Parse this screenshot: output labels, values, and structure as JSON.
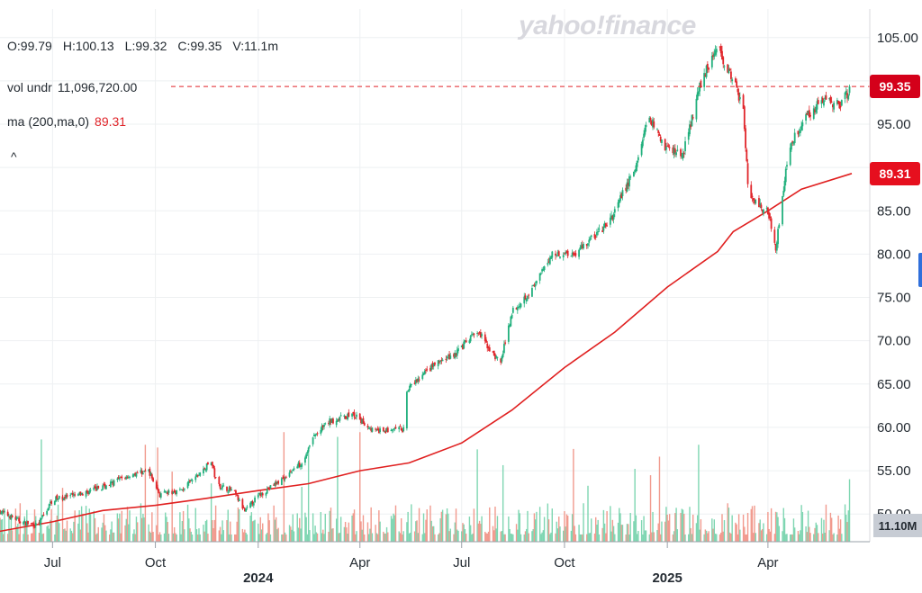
{
  "brand": "yahoo!finance",
  "ohlc": {
    "open": "O:99.79",
    "high": "H:100.13",
    "low": "L:99.32",
    "close": "C:99.35",
    "volume": "V:11.1m"
  },
  "indicators": {
    "vol_label": "vol undr",
    "vol_value": "11,096,720.00",
    "ma_label": "ma (200,ma,0)",
    "ma_value": "89.31"
  },
  "collapse_glyph": "^",
  "badges": {
    "last_price": "99.35",
    "ma_price": "89.31",
    "volume": "11.10M"
  },
  "colors": {
    "up": "#22b07d",
    "down": "#e0252a",
    "ma": "#e02020",
    "vol_up": "#7fd6b2",
    "vol_down": "#f19a8e",
    "price_badge": "#d4001a",
    "ma_badge": "#e60f1e"
  },
  "chart_data": {
    "type": "candlestick",
    "y_ticks": [
      "105.00",
      "100.00",
      "95.00",
      "90.00",
      "85.00",
      "80.00",
      "75.00",
      "70.00",
      "65.00",
      "60.00",
      "55.00",
      "50.00"
    ],
    "x_ticks": [
      {
        "label": "Jul",
        "date": "2023-07-01"
      },
      {
        "label": "Oct",
        "date": "2023-10-01"
      },
      {
        "label": "2024",
        "date": "2024-01-01"
      },
      {
        "label": "Apr",
        "date": "2024-04-01"
      },
      {
        "label": "Jul",
        "date": "2024-07-01"
      },
      {
        "label": "Oct",
        "date": "2024-10-01"
      },
      {
        "label": "2025",
        "date": "2025-01-01"
      },
      {
        "label": "Apr",
        "date": "2025-04-01"
      }
    ],
    "ylim": [
      46.8,
      108.3
    ],
    "last_price": 99.35,
    "price_path": [
      [
        "2023-05-15",
        50.3
      ],
      [
        "2023-06-05",
        49.0
      ],
      [
        "2023-06-18",
        48.7
      ],
      [
        "2023-07-01",
        51.7
      ],
      [
        "2023-07-25",
        52.2
      ],
      [
        "2023-08-20",
        53.4
      ],
      [
        "2023-09-10",
        54.6
      ],
      [
        "2023-09-25",
        55.0
      ],
      [
        "2023-10-05",
        52.2
      ],
      [
        "2023-10-25",
        52.8
      ],
      [
        "2023-11-10",
        54.7
      ],
      [
        "2023-11-20",
        56.1
      ],
      [
        "2023-11-25",
        53.4
      ],
      [
        "2023-12-10",
        52.6
      ],
      [
        "2023-12-20",
        50.3
      ],
      [
        "2024-01-01",
        52.1
      ],
      [
        "2024-01-20",
        53.8
      ],
      [
        "2024-02-10",
        56.1
      ],
      [
        "2024-02-20",
        59.0
      ],
      [
        "2024-03-05",
        60.7
      ],
      [
        "2024-03-25",
        61.5
      ],
      [
        "2024-04-15",
        59.5
      ],
      [
        "2024-05-10",
        59.8
      ],
      [
        "2024-05-12",
        64.1
      ],
      [
        "2024-06-05",
        67.1
      ],
      [
        "2024-06-25",
        68.5
      ],
      [
        "2024-07-15",
        71.1
      ],
      [
        "2024-07-30",
        68.3
      ],
      [
        "2024-08-05",
        67.5
      ],
      [
        "2024-08-15",
        73.4
      ],
      [
        "2024-09-05",
        76.4
      ],
      [
        "2024-09-20",
        80.1
      ],
      [
        "2024-10-10",
        80.1
      ],
      [
        "2024-11-10",
        83.6
      ],
      [
        "2024-12-05",
        90.5
      ],
      [
        "2024-12-15",
        96.1
      ],
      [
        "2024-12-30",
        92.4
      ],
      [
        "2025-01-15",
        91.5
      ],
      [
        "2025-02-01",
        100.3
      ],
      [
        "2025-02-15",
        104.0
      ],
      [
        "2025-03-01",
        99.9
      ],
      [
        "2025-03-10",
        97.0
      ],
      [
        "2025-03-15",
        86.3
      ],
      [
        "2025-04-01",
        85.0
      ],
      [
        "2025-04-08",
        80.8
      ],
      [
        "2025-04-20",
        92.4
      ],
      [
        "2025-05-05",
        96.0
      ],
      [
        "2025-05-20",
        97.7
      ],
      [
        "2025-06-05",
        97.4
      ],
      [
        "2025-06-15",
        99.35
      ]
    ],
    "ma_200": [
      [
        "2023-05-15",
        48.0
      ],
      [
        "2023-07-01",
        49.1
      ],
      [
        "2023-08-15",
        50.4
      ],
      [
        "2023-10-01",
        51.0
      ],
      [
        "2023-11-15",
        51.8
      ],
      [
        "2024-01-01",
        52.7
      ],
      [
        "2024-02-15",
        53.5
      ],
      [
        "2024-04-01",
        55.0
      ],
      [
        "2024-05-15",
        55.9
      ],
      [
        "2024-07-01",
        58.2
      ],
      [
        "2024-08-15",
        62.0
      ],
      [
        "2024-10-01",
        66.9
      ],
      [
        "2024-11-15",
        71.0
      ],
      [
        "2025-01-01",
        76.2
      ],
      [
        "2025-02-15",
        80.3
      ],
      [
        "2025-03-01",
        82.6
      ],
      [
        "2025-04-01",
        85.0
      ],
      [
        "2025-05-01",
        87.5
      ],
      [
        "2025-06-15",
        89.31
      ]
    ],
    "volume_mean_note": "",
    "date_range": [
      "2023-05-15",
      "2025-06-15"
    ]
  }
}
